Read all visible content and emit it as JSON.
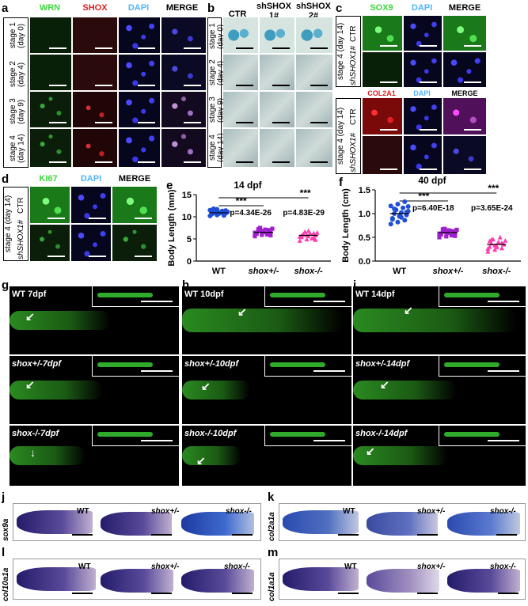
{
  "panels": {
    "a": {
      "label": "a",
      "headers": [
        "WRN",
        "SHOX",
        "DAPI",
        "MERGE"
      ],
      "header_colors": [
        "#3dd83d",
        "#e02020",
        "#4fb5ff",
        "#000000"
      ],
      "rows": [
        "stage 1 (day 0)",
        "stage 2 (day 4)",
        "stage 3 (day 9)",
        "stage 4 (day 14)"
      ]
    },
    "b": {
      "label": "b",
      "headers": [
        "CTR",
        "shSHOX 1#",
        "shSHOX 2#"
      ],
      "rows": [
        "stage 1 (day 0)",
        "stage 2 (day 4)",
        "stage 3 (day 9)",
        "stage 4 (day 14)"
      ]
    },
    "c": {
      "label": "c",
      "headers_top": [
        "SOX9",
        "DAPI",
        "MERGE"
      ],
      "headers_top_colors": [
        "#3dd83d",
        "#4fb5ff",
        "#000000"
      ],
      "headers_bottom": [
        "COL2A1",
        "DAPI",
        "MERGE"
      ],
      "headers_bottom_colors": [
        "#e02020",
        "#4fb5ff",
        "#000000"
      ],
      "stage_label": "stage 4 (day 14)",
      "row_labels": [
        "CTR",
        "shSHOX1#"
      ]
    },
    "d": {
      "label": "d",
      "headers": [
        "KI67",
        "DAPI",
        "MERGE"
      ],
      "header_colors": [
        "#3dd83d",
        "#4fb5ff",
        "#000000"
      ],
      "stage_label": "stage 4 (day 14)",
      "row_labels": [
        "CTR",
        "shSHOX1#"
      ]
    },
    "g": {
      "label": "g",
      "titles": [
        "WT 7dpf",
        "shox+/-7dpf",
        "shox-/-7dpf"
      ]
    },
    "h": {
      "label": "h",
      "titles": [
        "WT 10dpf",
        "shox+/-10dpf",
        "shox-/-10dpf"
      ]
    },
    "i": {
      "label": "i",
      "titles": [
        "WT 14dpf",
        "shox+/-14dpf",
        "shox-/-14dpf"
      ]
    },
    "j": {
      "label": "j",
      "gene": "sox9a"
    },
    "k": {
      "label": "k",
      "gene": "col2a1a"
    },
    "l": {
      "label": "l",
      "gene": "col10a1a"
    },
    "m": {
      "label": "m",
      "gene": "col1a1a"
    },
    "ish_genotypes": [
      "WT",
      "shox+/-",
      "shox-/-"
    ]
  },
  "chart_data": [
    {
      "panel": "e",
      "type": "scatter",
      "title": "14 dpf",
      "ylabel": "Body Length (mm)",
      "categories": [
        "WT",
        "shox+/-",
        "shox-/-"
      ],
      "ylim": [
        0,
        15
      ],
      "yticks": [
        0,
        5,
        10,
        15
      ],
      "means": [
        10.9,
        6.5,
        5.8
      ],
      "series": [
        {
          "name": "WT",
          "color": "#1f4fd8",
          "marker": "circle",
          "values": [
            10.2,
            10.4,
            10.5,
            10.6,
            10.7,
            10.8,
            10.9,
            11.0,
            11.1,
            11.2,
            11.3,
            11.5,
            11.7,
            10.3,
            10.6,
            11.0,
            11.4,
            11.8,
            10.9,
            11.1
          ]
        },
        {
          "name": "shox+/-",
          "color": "#a020d0",
          "marker": "square",
          "values": [
            5.6,
            5.9,
            6.1,
            6.3,
            6.5,
            6.7,
            6.9,
            7.1,
            7.3,
            7.5,
            6.0,
            6.4,
            6.8,
            7.0,
            6.2,
            6.6,
            5.8,
            7.2
          ]
        },
        {
          "name": "shox-/-",
          "color": "#ff3db0",
          "marker": "triangle",
          "values": [
            4.6,
            4.9,
            5.2,
            5.4,
            5.6,
            5.8,
            6.0,
            6.2,
            6.4,
            6.6,
            5.1,
            5.5,
            5.9,
            6.3,
            5.7,
            6.8,
            4.8,
            6.1
          ]
        }
      ],
      "annotations": [
        {
          "text": "***",
          "between": [
            "WT",
            "shox+/-"
          ]
        },
        {
          "text": "p=4.34E-26",
          "between": [
            "WT",
            "shox+/-"
          ]
        },
        {
          "text": "***",
          "between": [
            "WT",
            "shox-/-"
          ]
        },
        {
          "text": "p=4.83E-29",
          "between": [
            "WT",
            "shox-/-"
          ]
        }
      ]
    },
    {
      "panel": "f",
      "type": "scatter",
      "title": "40 dpf",
      "ylabel": "Body Length (cm)",
      "categories": [
        "WT",
        "shox+/-",
        "shox-/-"
      ],
      "ylim": [
        0,
        1.5
      ],
      "yticks": [
        0.0,
        0.5,
        1.0,
        1.5
      ],
      "means": [
        1.0,
        0.6,
        0.35
      ],
      "series": [
        {
          "name": "WT",
          "color": "#1f4fd8",
          "marker": "circle",
          "values": [
            0.78,
            0.82,
            0.86,
            0.9,
            0.94,
            0.97,
            1.0,
            1.02,
            1.05,
            1.08,
            1.12,
            1.16,
            1.2,
            1.25,
            0.88,
            0.95,
            1.03,
            1.1,
            0.92,
            1.15
          ]
        },
        {
          "name": "shox+/-",
          "color": "#a020d0",
          "marker": "square",
          "values": [
            0.5,
            0.52,
            0.55,
            0.57,
            0.59,
            0.6,
            0.62,
            0.64,
            0.66,
            0.68,
            0.54,
            0.58,
            0.61,
            0.63,
            0.56,
            0.65,
            0.53,
            0.67
          ]
        },
        {
          "name": "shox-/-",
          "color": "#ff3db0",
          "marker": "triangle",
          "values": [
            0.2,
            0.24,
            0.27,
            0.3,
            0.32,
            0.35,
            0.37,
            0.4,
            0.43,
            0.46,
            0.5,
            0.26,
            0.33,
            0.38,
            0.42,
            0.29,
            0.36,
            0.45
          ]
        }
      ],
      "annotations": [
        {
          "text": "***",
          "between": [
            "WT",
            "shox+/-"
          ]
        },
        {
          "text": "p=6.40E-18",
          "between": [
            "WT",
            "shox+/-"
          ]
        },
        {
          "text": "***",
          "between": [
            "WT",
            "shox-/-"
          ]
        },
        {
          "text": "p=3.65E-24",
          "between": [
            "WT",
            "shox-/-"
          ]
        }
      ]
    }
  ]
}
